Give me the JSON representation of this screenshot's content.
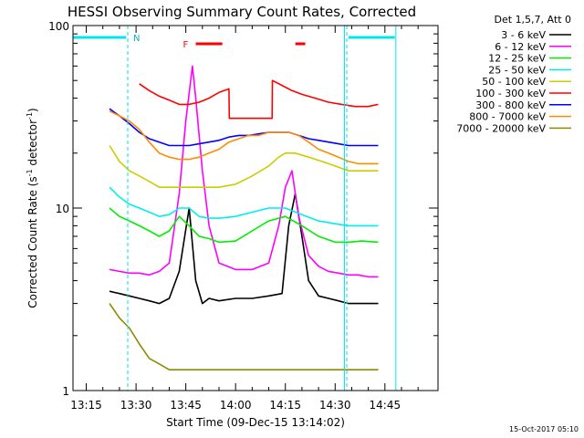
{
  "chart_data": {
    "type": "line",
    "title": "HESSI Observing Summary Count Rates, Corrected",
    "xlabel": "Start Time (09-Dec-15 13:14:02)",
    "ylabel_main": "Corrected Count Rate (s",
    "ylabel_sup1": "-1",
    "ylabel_mid": " detector",
    "ylabel_sup2": "-1",
    "ylabel_end": ")",
    "x_ticks": [
      "13:15",
      "13:30",
      "13:45",
      "14:00",
      "14:15",
      "14:30",
      "14:45"
    ],
    "x_tick_minutes": [
      15,
      30,
      45,
      60,
      75,
      90,
      105
    ],
    "x_range_minutes": [
      11,
      121
    ],
    "y_scale": "log",
    "ylim": [
      1,
      100
    ],
    "y_ticks": [
      "1",
      "10",
      "100"
    ],
    "legend_header": "Det 1,5,7, Att 0",
    "footer_timestamp": "15-Oct-2017 05:10",
    "markers": {
      "night_label": "N",
      "flare_label": "F",
      "night_lines_minutes": [
        27.5,
        93.5
      ],
      "flare_bars_minutes": [
        [
          48,
          56
        ],
        [
          78,
          81
        ]
      ],
      "saa_top_segments": [
        [
          11,
          27
        ],
        [
          94,
          108
        ]
      ],
      "saa_vlines_minutes": [
        92.8,
        108.3
      ]
    },
    "series": [
      {
        "name": "3 - 6 keV",
        "color": "#000000",
        "x": [
          22,
          25,
          28,
          31,
          34,
          37,
          40,
          43,
          46,
          48,
          50,
          52,
          55,
          60,
          65,
          70,
          74,
          76,
          78,
          80,
          82,
          85,
          88,
          91,
          94,
          97,
          100,
          103
        ],
        "y": [
          3.5,
          3.4,
          3.3,
          3.2,
          3.1,
          3.0,
          3.2,
          4.5,
          10,
          4,
          3.0,
          3.2,
          3.1,
          3.2,
          3.2,
          3.3,
          3.4,
          8,
          12,
          7,
          4,
          3.3,
          3.2,
          3.1,
          3.0,
          3.0,
          3.0,
          3.0
        ]
      },
      {
        "name": "6 - 12 keV",
        "color": "#ff00ff",
        "x": [
          22,
          25,
          28,
          31,
          34,
          37,
          40,
          43,
          45,
          47,
          48,
          50,
          52,
          55,
          60,
          65,
          70,
          73,
          75,
          77,
          79,
          82,
          85,
          88,
          91,
          94,
          97,
          100,
          103
        ],
        "y": [
          4.6,
          4.5,
          4.4,
          4.4,
          4.3,
          4.5,
          5.0,
          12,
          30,
          60,
          40,
          16,
          8,
          5.0,
          4.6,
          4.6,
          5.0,
          8,
          13,
          16,
          9,
          5.5,
          4.8,
          4.5,
          4.4,
          4.3,
          4.3,
          4.2,
          4.2
        ]
      },
      {
        "name": "12 - 25 keV",
        "color": "#00ee00",
        "x": [
          22,
          25,
          28,
          31,
          34,
          37,
          40,
          43,
          46,
          49,
          52,
          55,
          60,
          65,
          70,
          75,
          80,
          85,
          90,
          94,
          98,
          103
        ],
        "y": [
          10,
          9,
          8.5,
          8,
          7.5,
          7.0,
          7.5,
          9,
          8,
          7,
          6.8,
          6.5,
          6.6,
          7.5,
          8.5,
          9,
          8,
          7,
          6.5,
          6.5,
          6.6,
          6.5
        ]
      },
      {
        "name": "25 - 50 keV",
        "color": "#00eeee",
        "x": [
          22,
          25,
          28,
          31,
          34,
          37,
          40,
          43,
          46,
          49,
          52,
          55,
          60,
          65,
          70,
          75,
          80,
          85,
          90,
          94,
          98,
          103
        ],
        "y": [
          13,
          11.5,
          10.5,
          10,
          9.5,
          9,
          9.2,
          10,
          10,
          9,
          8.8,
          8.8,
          9,
          9.5,
          10,
          10,
          9.2,
          8.5,
          8.2,
          8.0,
          8.0,
          8.0
        ]
      },
      {
        "name": "50 - 100 keV",
        "color": "#cccc00",
        "x": [
          22,
          25,
          28,
          31,
          34,
          37,
          40,
          43,
          46,
          49,
          52,
          55,
          60,
          65,
          70,
          73,
          75,
          78,
          82,
          86,
          90,
          94,
          98,
          103
        ],
        "y": [
          22,
          18,
          16,
          15,
          14,
          13,
          13,
          13,
          13,
          13,
          13,
          13,
          13.5,
          15,
          17,
          19,
          20,
          20,
          19,
          18,
          17,
          16,
          16,
          16
        ]
      },
      {
        "name": "100 - 300 keV",
        "color": "#ff0000",
        "x": [
          31,
          34,
          37,
          40,
          43,
          46,
          49,
          52,
          55,
          58,
          58.1,
          71,
          71.1,
          74,
          77,
          80,
          84,
          88,
          92,
          96,
          100,
          103
        ],
        "y": [
          48,
          44,
          41,
          39,
          37,
          37,
          38,
          40,
          43,
          45,
          31,
          31,
          50,
          47,
          44,
          42,
          40,
          38,
          37,
          36,
          36,
          37
        ]
      },
      {
        "name": "300 - 800 keV",
        "color": "#0000ff",
        "x": [
          22,
          25,
          28,
          31,
          34,
          37,
          40,
          43,
          46,
          49,
          52,
          55,
          58,
          61,
          64,
          67,
          70,
          73,
          76,
          79,
          82,
          85,
          88,
          91,
          94,
          97,
          100,
          103
        ],
        "y": [
          35,
          32,
          29,
          26,
          24,
          23,
          22,
          22,
          22,
          22.5,
          23,
          23.5,
          24.5,
          25,
          25,
          25.5,
          26,
          26,
          26,
          25,
          24,
          23.5,
          23,
          22.5,
          22,
          22,
          22,
          22
        ]
      },
      {
        "name": "800 - 7000 keV",
        "color": "#ff8c00",
        "x": [
          22,
          25,
          28,
          31,
          34,
          37,
          40,
          43,
          46,
          49,
          52,
          55,
          58,
          61,
          64,
          67,
          70,
          73,
          76,
          79,
          82,
          85,
          88,
          91,
          94,
          97,
          100,
          103
        ],
        "y": [
          34,
          32,
          30,
          27,
          23,
          20,
          19,
          18.5,
          18.5,
          19,
          20,
          21,
          23,
          24,
          25,
          25,
          26,
          26,
          26,
          25,
          23,
          21,
          20,
          19,
          18,
          17.5,
          17.5,
          17.5
        ]
      },
      {
        "name": "7000 - 20000 keV",
        "color": "#8b8b00",
        "x": [
          22,
          25,
          28,
          31,
          34,
          37,
          40,
          45,
          50,
          55,
          60,
          65,
          70,
          75,
          80,
          85,
          90,
          95,
          100,
          103
        ],
        "y": [
          3.0,
          2.5,
          2.2,
          1.8,
          1.5,
          1.4,
          1.3,
          1.3,
          1.3,
          1.3,
          1.3,
          1.3,
          1.3,
          1.3,
          1.3,
          1.3,
          1.3,
          1.3,
          1.3,
          1.3
        ]
      }
    ]
  }
}
